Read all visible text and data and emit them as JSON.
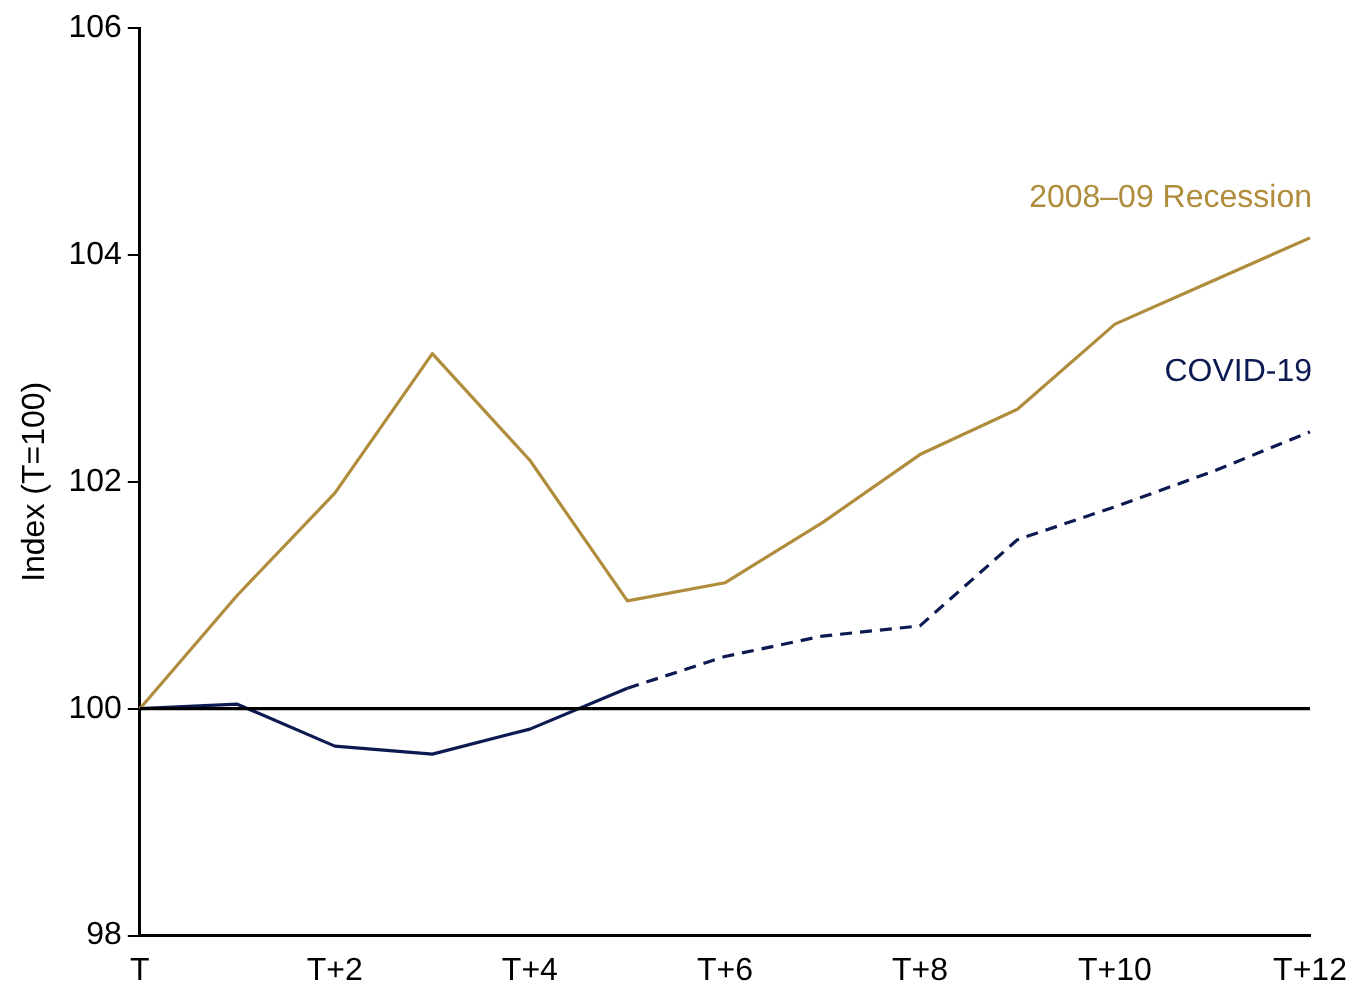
{
  "chart_data": {
    "type": "line",
    "ylabel": "Index (T=100)",
    "categories": [
      "T",
      null,
      "T+2",
      null,
      "T+4",
      null,
      "T+6",
      null,
      "T+8",
      null,
      "T+10",
      null,
      "T+12"
    ],
    "series": [
      {
        "name": "2008–09 Recession",
        "color": "#b08d3c",
        "line_style": "solid",
        "values": [
          100,
          101.0,
          101.9,
          103.13,
          102.19,
          100.95,
          101.11,
          101.64,
          102.24,
          102.64,
          103.39,
          103.77,
          104.15
        ]
      },
      {
        "name": "COVID-19",
        "color": "#0d1a52",
        "line_style": "solid",
        "values": [
          100,
          100.04,
          99.67,
          99.6,
          99.82,
          100.18,
          null,
          null,
          null,
          null,
          null,
          null,
          null
        ]
      },
      {
        "color": "#0d1a52",
        "line_style": "dashed",
        "values": [
          null,
          null,
          null,
          null,
          null,
          100.18,
          100.46,
          100.64,
          100.73,
          101.49,
          101.78,
          102.09,
          102.44
        ]
      }
    ],
    "ylim": [
      98,
      106
    ],
    "yticks": [
      98,
      100,
      102,
      104,
      106
    ],
    "grid": false,
    "legend": false,
    "marker": "none",
    "ref_lines": [
      {
        "axis": "y",
        "value": 100,
        "color": "#000000"
      }
    ]
  }
}
